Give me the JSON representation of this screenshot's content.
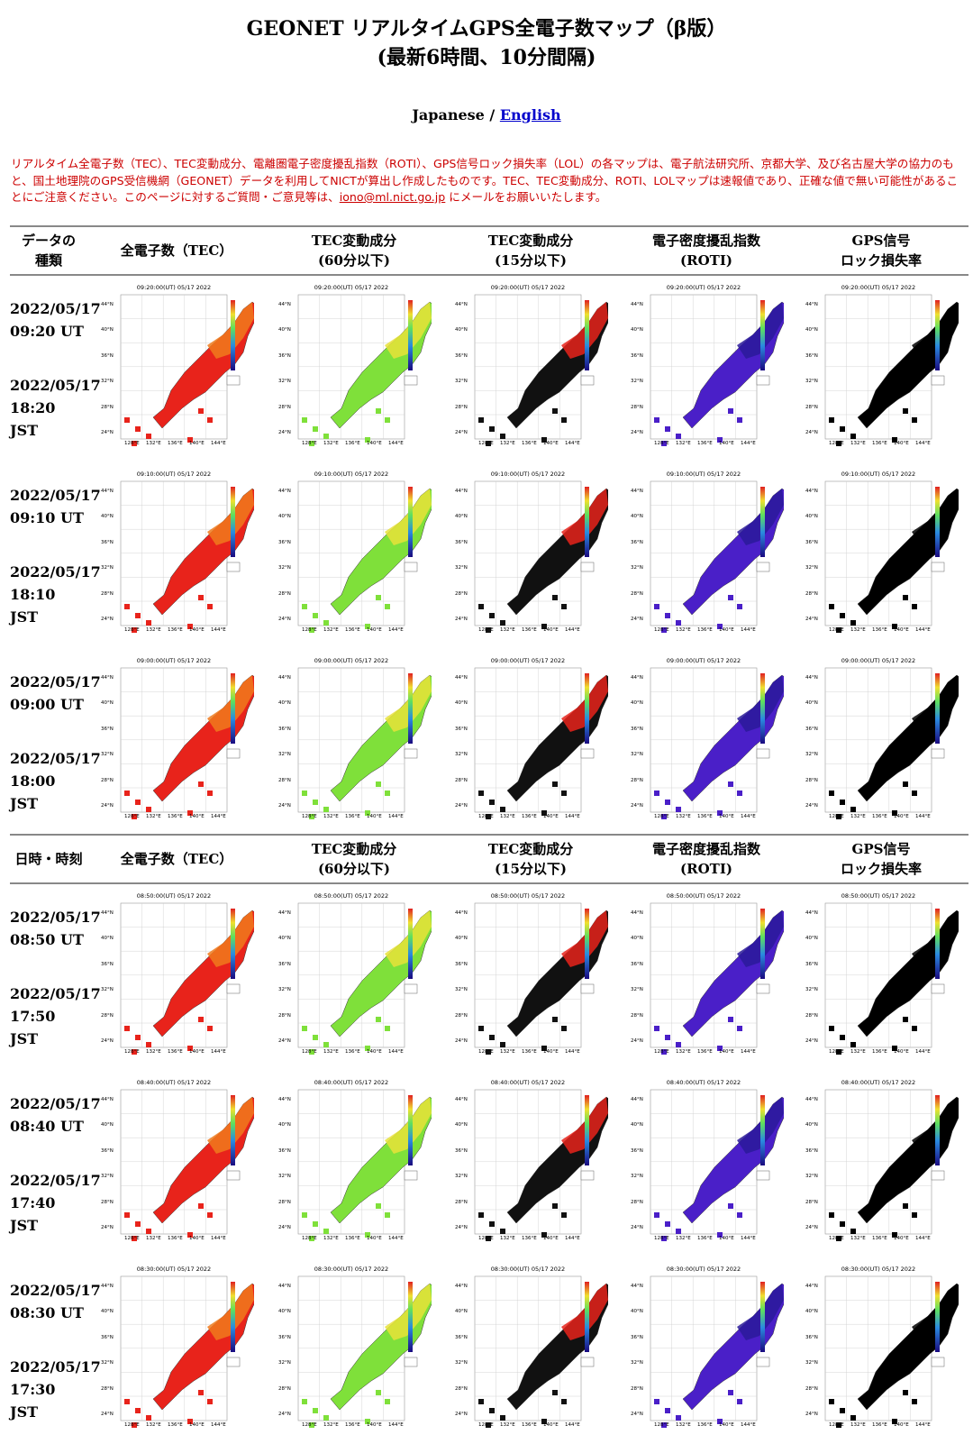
{
  "header": {
    "title_line1": "GEONET リアルタイムGPS全電子数マップ（β版）",
    "title_line2": "(最新6時間、10分間隔)",
    "lang_japanese": "Japanese",
    "lang_sep": "/",
    "lang_english": "English"
  },
  "notice": {
    "text": "リアルタイム全電子数（TEC）、TEC変動成分、電離圏電子密度擾乱指数（ROTI）、GPS信号ロック損失率（LOL）の各マップは、電子航法研究所、京都大学、及び名古屋大学の協力のもと、国土地理院のGPS受信機網（GEONET）データを利用してNICTが算出し作成したものです。TEC、TEC変動成分、ROTI、LOLマップは速報値であり、正確な値で無い可能性があることにご注意ください。このページに対するご質問・ご意見等は、",
    "email": "iono@ml.nict.go.jp",
    "text_after": " にメールをお願いいたします。"
  },
  "table1_headers": [
    {
      "l1": "データの",
      "l2": "種類"
    },
    {
      "l1": "全電子数（TEC）",
      "l2": ""
    },
    {
      "l1": "TEC変動成分",
      "l2": "(60分以下)"
    },
    {
      "l1": "TEC変動成分",
      "l2": "(15分以下)"
    },
    {
      "l1": "電子密度擾乱指数",
      "l2": "(ROTI)"
    },
    {
      "l1": "GPS信号",
      "l2": "ロック損失率"
    }
  ],
  "table2_headers": [
    {
      "l1": "日時・時刻",
      "l2": ""
    },
    {
      "l1": "全電子数（TEC）",
      "l2": ""
    },
    {
      "l1": "TEC変動成分",
      "l2": "(60分以下)"
    },
    {
      "l1": "TEC変動成分",
      "l2": "(15分以下)"
    },
    {
      "l1": "電子密度擾乱指数",
      "l2": "(ROTI)"
    },
    {
      "l1": "GPS信号",
      "l2": "ロック損失率"
    }
  ],
  "rows": [
    {
      "date_ut": "2022/05/17",
      "time_ut": "09:20 UT",
      "date_jst": "2022/05/17",
      "time_jst": "18:20 JST",
      "stamp": "09:20:00(UT) 05/17 2022"
    },
    {
      "date_ut": "2022/05/17",
      "time_ut": "09:10 UT",
      "date_jst": "2022/05/17",
      "time_jst": "18:10 JST",
      "stamp": "09:10:00(UT) 05/17 2022"
    },
    {
      "date_ut": "2022/05/17",
      "time_ut": "09:00 UT",
      "date_jst": "2022/05/17",
      "time_jst": "18:00 JST",
      "stamp": "09:00:00(UT) 05/17 2022"
    },
    {
      "date_ut": "2022/05/17",
      "time_ut": "08:50 UT",
      "date_jst": "2022/05/17",
      "time_jst": "17:50 JST",
      "stamp": "08:50:00(UT) 05/17 2022"
    },
    {
      "date_ut": "2022/05/17",
      "time_ut": "08:40 UT",
      "date_jst": "2022/05/17",
      "time_jst": "17:40 JST",
      "stamp": "08:40:00(UT) 05/17 2022"
    },
    {
      "date_ut": "2022/05/17",
      "time_ut": "08:30 UT",
      "date_jst": "2022/05/17",
      "time_jst": "17:30 JST",
      "stamp": "08:30:00(UT) 05/17 2022"
    }
  ],
  "map_types": [
    {
      "key": "tec",
      "fill": "#e8231b",
      "alt": "#f07a1c"
    },
    {
      "key": "dtec60",
      "fill": "#7fe03a",
      "alt": "#e8e23a"
    },
    {
      "key": "dtec15",
      "fill": "#111111",
      "alt": "#e8231b"
    },
    {
      "key": "roti",
      "fill": "#4a1fc8",
      "alt": "#2a1a9a"
    },
    {
      "key": "lol",
      "fill": "#000000",
      "alt": "#000000"
    }
  ],
  "map_axes": {
    "lat_labels": [
      "44°N",
      "40°N",
      "36°N",
      "32°N",
      "28°N",
      "24°N"
    ],
    "lon_labels": [
      "128°E",
      "132°E",
      "136°E",
      "140°E",
      "144°E"
    ]
  }
}
